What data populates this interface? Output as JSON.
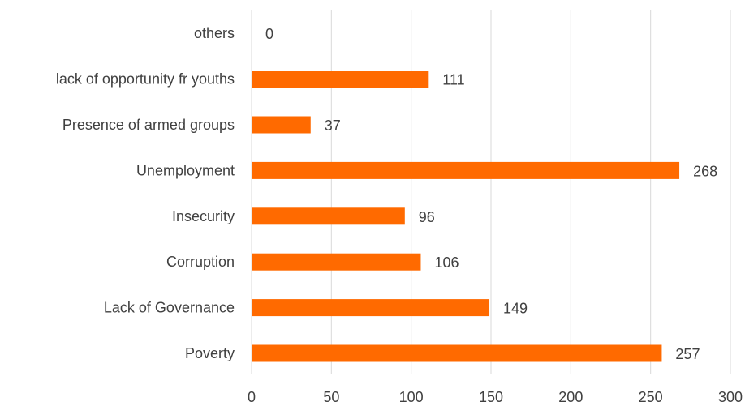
{
  "chart_data": {
    "type": "bar",
    "orientation": "horizontal",
    "categories": [
      "others",
      "lack of opportunity fr youths",
      "Presence of armed groups",
      "Unemployment",
      "Insecurity",
      "Corruption",
      "Lack of Governance",
      "Poverty"
    ],
    "values": [
      0,
      111,
      37,
      268,
      96,
      106,
      149,
      257
    ],
    "xlim": [
      0,
      300
    ],
    "x_ticks": [
      "0",
      "50",
      "100",
      "150",
      "200",
      "250",
      "300"
    ],
    "title": "",
    "xlabel": "",
    "ylabel": "",
    "grid": "vertical",
    "data_labels": true,
    "bar_color": "#FF6A00"
  }
}
